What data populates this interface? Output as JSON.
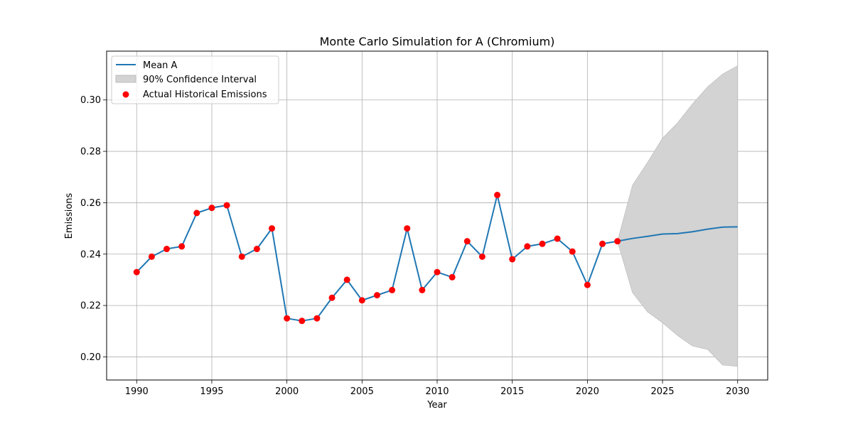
{
  "chart_data": {
    "type": "line",
    "title": "Monte Carlo Simulation for A (Chromium)",
    "xlabel": "Year",
    "ylabel": "Emissions",
    "xlim": [
      1988,
      2032
    ],
    "ylim": [
      0.191,
      0.319
    ],
    "xticks": [
      1990,
      1995,
      2000,
      2005,
      2010,
      2015,
      2020,
      2025,
      2030
    ],
    "yticks": [
      0.2,
      0.22,
      0.24,
      0.26,
      0.28,
      0.3
    ],
    "xtick_labels": [
      "1990",
      "1995",
      "2000",
      "2005",
      "2010",
      "2015",
      "2020",
      "2025",
      "2030"
    ],
    "ytick_labels": [
      "0.20",
      "0.22",
      "0.24",
      "0.26",
      "0.28",
      "0.30"
    ],
    "grid": true,
    "legend_position": "top-left",
    "colors": {
      "mean_line": "#1f77b4",
      "ci_fill": "#d3d3d3",
      "ci_edge": "#b5b5b5",
      "actual_points": "#ff0000",
      "grid": "#b0b0b0",
      "axes": "#000000"
    },
    "series": [
      {
        "name": "Mean A",
        "kind": "line",
        "x": [
          1990,
          1991,
          1992,
          1993,
          1994,
          1995,
          1996,
          1997,
          1998,
          1999,
          2000,
          2001,
          2002,
          2003,
          2004,
          2005,
          2006,
          2007,
          2008,
          2009,
          2010,
          2011,
          2012,
          2013,
          2014,
          2015,
          2016,
          2017,
          2018,
          2019,
          2020,
          2021,
          2022,
          2023,
          2024,
          2025,
          2026,
          2027,
          2028,
          2029,
          2030
        ],
        "y": [
          0.233,
          0.239,
          0.242,
          0.243,
          0.256,
          0.258,
          0.259,
          0.239,
          0.242,
          0.25,
          0.215,
          0.214,
          0.215,
          0.223,
          0.23,
          0.222,
          0.224,
          0.226,
          0.25,
          0.226,
          0.233,
          0.231,
          0.245,
          0.239,
          0.263,
          0.238,
          0.243,
          0.244,
          0.246,
          0.241,
          0.228,
          0.244,
          0.245,
          0.2461,
          0.2469,
          0.2478,
          0.248,
          0.2487,
          0.2497,
          0.2505,
          0.2506
        ]
      },
      {
        "name": "90% Confidence Interval",
        "kind": "band",
        "x": [
          2022,
          2023,
          2024,
          2025,
          2026,
          2027,
          2028,
          2029,
          2030
        ],
        "lower": [
          0.245,
          0.225,
          0.2175,
          0.2133,
          0.2083,
          0.2042,
          0.2029,
          0.1968,
          0.1963
        ],
        "upper": [
          0.245,
          0.2668,
          0.2757,
          0.2851,
          0.2911,
          0.2985,
          0.3051,
          0.3101,
          0.3133
        ]
      },
      {
        "name": "Actual Historical Emissions",
        "kind": "scatter",
        "x": [
          1990,
          1991,
          1992,
          1993,
          1994,
          1995,
          1996,
          1997,
          1998,
          1999,
          2000,
          2001,
          2002,
          2003,
          2004,
          2005,
          2006,
          2007,
          2008,
          2009,
          2010,
          2011,
          2012,
          2013,
          2014,
          2015,
          2016,
          2017,
          2018,
          2019,
          2020,
          2021,
          2022
        ],
        "y": [
          0.233,
          0.239,
          0.242,
          0.243,
          0.256,
          0.258,
          0.259,
          0.239,
          0.242,
          0.25,
          0.215,
          0.214,
          0.215,
          0.223,
          0.23,
          0.222,
          0.224,
          0.226,
          0.25,
          0.226,
          0.233,
          0.231,
          0.245,
          0.239,
          0.263,
          0.238,
          0.243,
          0.244,
          0.246,
          0.241,
          0.228,
          0.244,
          0.245
        ]
      }
    ]
  }
}
